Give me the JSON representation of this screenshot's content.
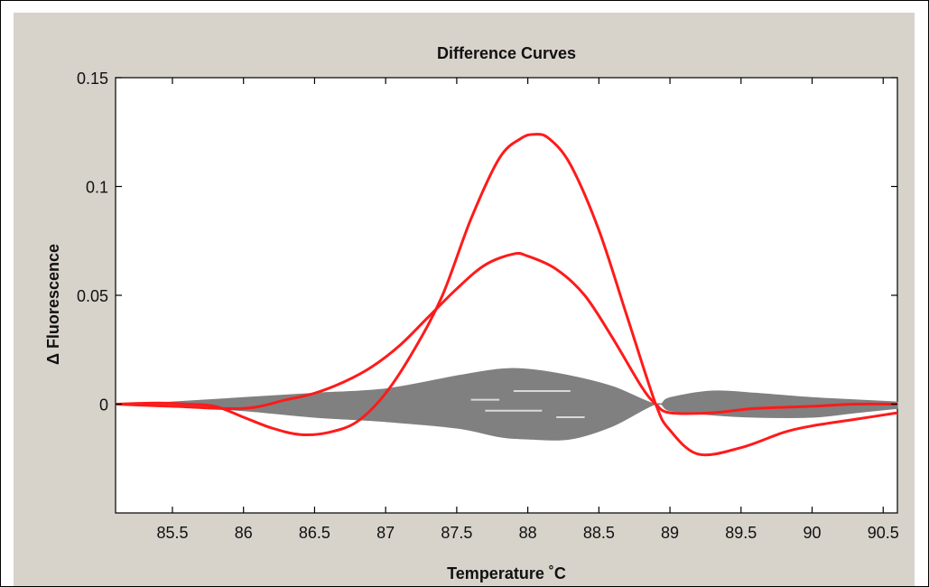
{
  "chart_data": {
    "type": "line",
    "title": "Difference Curves",
    "xlabel": "Temperature ˚C",
    "ylabel": "Δ Fluorescence",
    "xlim": [
      85.1,
      90.6
    ],
    "ylim": [
      -0.05,
      0.15
    ],
    "xticks": [
      "85.5",
      "86",
      "86.5",
      "87",
      "87.5",
      "88",
      "88.5",
      "89",
      "89.5",
      "90",
      "90.5"
    ],
    "yticks": [
      "0",
      "0.05",
      "0.1",
      "0.15"
    ],
    "grid": false,
    "legend": "none",
    "series": [
      {
        "color": "#ff1a1a",
        "x": [
          85.1,
          85.4,
          85.6,
          85.8,
          86.0,
          86.2,
          86.4,
          86.6,
          86.8,
          87.0,
          87.2,
          87.4,
          87.6,
          87.8,
          87.95,
          88.05,
          88.15,
          88.3,
          88.5,
          88.7,
          88.9,
          89.0,
          89.2,
          89.5,
          89.8,
          90.0,
          90.3,
          90.6
        ],
        "y": [
          0.0,
          0.0005,
          0.0,
          -0.001,
          -0.006,
          -0.011,
          -0.014,
          -0.013,
          -0.008,
          0.005,
          0.025,
          0.05,
          0.085,
          0.113,
          0.122,
          0.124,
          0.122,
          0.11,
          0.08,
          0.04,
          0.0,
          -0.012,
          -0.023,
          -0.02,
          -0.013,
          -0.01,
          -0.007,
          -0.004
        ]
      },
      {
        "color": "#ff1a1a",
        "x": [
          85.1,
          85.5,
          86.0,
          86.3,
          86.5,
          86.7,
          86.9,
          87.1,
          87.3,
          87.5,
          87.7,
          87.9,
          88.0,
          88.2,
          88.4,
          88.6,
          88.8,
          88.9,
          89.0,
          89.3,
          89.6,
          90.0,
          90.3,
          90.6
        ],
        "y": [
          0.0,
          -0.001,
          -0.002,
          0.002,
          0.005,
          0.01,
          0.017,
          0.027,
          0.04,
          0.053,
          0.064,
          0.069,
          0.068,
          0.062,
          0.05,
          0.03,
          0.008,
          0.0,
          -0.004,
          -0.004,
          -0.002,
          -0.001,
          0.0,
          0.0
        ]
      }
    ],
    "gray_envelope": {
      "color": "#808080",
      "x": [
        85.1,
        85.5,
        86.0,
        86.5,
        87.0,
        87.5,
        87.8,
        88.0,
        88.3,
        88.6,
        88.9,
        89.0,
        89.3,
        89.6,
        90.0,
        90.3,
        90.6
      ],
      "upper": [
        0.0,
        0.001,
        0.003,
        0.005,
        0.007,
        0.013,
        0.016,
        0.016,
        0.013,
        0.008,
        0.0,
        0.003,
        0.006,
        0.005,
        0.003,
        0.002,
        0.001
      ],
      "lower": [
        0.0,
        -0.001,
        -0.003,
        -0.006,
        -0.008,
        -0.011,
        -0.015,
        -0.016,
        -0.016,
        -0.01,
        0.0,
        -0.003,
        -0.005,
        -0.006,
        -0.006,
        -0.004,
        -0.002
      ]
    }
  }
}
